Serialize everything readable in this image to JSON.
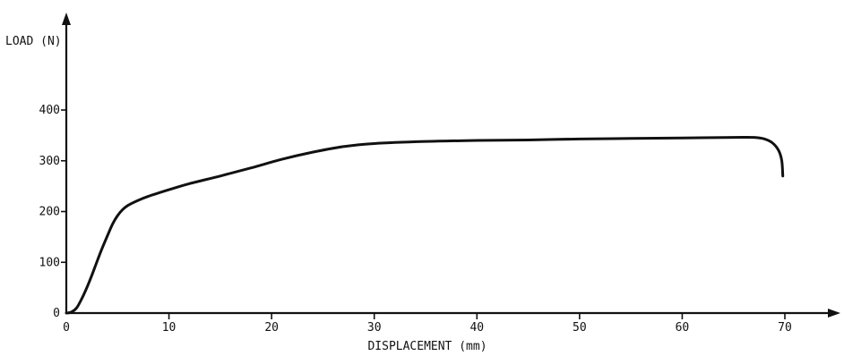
{
  "chart_data": {
    "type": "line",
    "title": "",
    "xlabel": "DISPLACEMENT (mm)",
    "ylabel": "LOAD (N)",
    "xlim": [
      0,
      70
    ],
    "ylim": [
      0,
      400
    ],
    "grid": false,
    "x_ticks": [
      0,
      10,
      20,
      30,
      40,
      50,
      60,
      70
    ],
    "x_tick_labels": [
      "0",
      "10",
      "20",
      "30",
      "40",
      "50",
      "60",
      "70"
    ],
    "y_ticks": [
      0,
      100,
      200,
      300,
      400
    ],
    "y_tick_labels": [
      "0",
      "100",
      "200",
      "300",
      "400"
    ],
    "series": [
      {
        "values": [
          {
            "x": 0.0,
            "y": 0
          },
          {
            "x": 0.5,
            "y": 2
          },
          {
            "x": 1.0,
            "y": 10
          },
          {
            "x": 1.5,
            "y": 28
          },
          {
            "x": 2.0,
            "y": 50
          },
          {
            "x": 2.5,
            "y": 75
          },
          {
            "x": 3.0,
            "y": 102
          },
          {
            "x": 3.5,
            "y": 128
          },
          {
            "x": 4.0,
            "y": 152
          },
          {
            "x": 4.5,
            "y": 175
          },
          {
            "x": 5.0,
            "y": 192
          },
          {
            "x": 5.5,
            "y": 204
          },
          {
            "x": 6.0,
            "y": 212
          },
          {
            "x": 7.0,
            "y": 222
          },
          {
            "x": 8.0,
            "y": 230
          },
          {
            "x": 10.0,
            "y": 243
          },
          {
            "x": 12.0,
            "y": 255
          },
          {
            "x": 15.0,
            "y": 270
          },
          {
            "x": 18.0,
            "y": 286
          },
          {
            "x": 21.0,
            "y": 303
          },
          {
            "x": 24.0,
            "y": 317
          },
          {
            "x": 27.0,
            "y": 328
          },
          {
            "x": 30.0,
            "y": 334
          },
          {
            "x": 35.0,
            "y": 338
          },
          {
            "x": 40.0,
            "y": 340
          },
          {
            "x": 45.0,
            "y": 341
          },
          {
            "x": 50.0,
            "y": 343
          },
          {
            "x": 55.0,
            "y": 344
          },
          {
            "x": 60.0,
            "y": 345
          },
          {
            "x": 65.0,
            "y": 346
          },
          {
            "x": 67.0,
            "y": 346
          },
          {
            "x": 68.0,
            "y": 343
          },
          {
            "x": 68.8,
            "y": 335
          },
          {
            "x": 69.4,
            "y": 320
          },
          {
            "x": 69.7,
            "y": 300
          },
          {
            "x": 69.8,
            "y": 270
          }
        ]
      }
    ]
  }
}
